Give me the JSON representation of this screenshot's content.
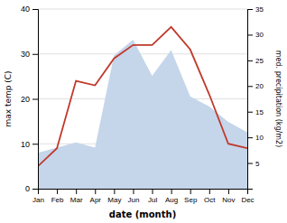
{
  "chart_data": {
    "type": "line",
    "categories": [
      "Jan",
      "Feb",
      "Mar",
      "Apr",
      "May",
      "Jun",
      "Jul",
      "Aug",
      "Sep",
      "Oct",
      "Nov",
      "Dec"
    ],
    "xlabel": "date (month)",
    "ylabel": "max temp (C)",
    "y2label": "med. precipitation (kg/m2)",
    "ylim": [
      0,
      40
    ],
    "yticks": [
      0,
      10,
      20,
      30,
      40
    ],
    "y2lim": [
      0,
      35
    ],
    "y2ticks": [
      5,
      10,
      15,
      20,
      25,
      30,
      35
    ],
    "grid": true,
    "series": [
      {
        "type": "area",
        "color": "#c5d5ea",
        "axis": "y2",
        "values": [
          7,
          8,
          9,
          8,
          26,
          29,
          22,
          27,
          18,
          16,
          13,
          11
        ]
      },
      {
        "type": "line",
        "color": "#c0392b",
        "values": [
          5,
          9,
          24,
          23,
          29,
          32,
          32,
          36,
          31,
          21,
          10,
          9
        ]
      }
    ]
  }
}
